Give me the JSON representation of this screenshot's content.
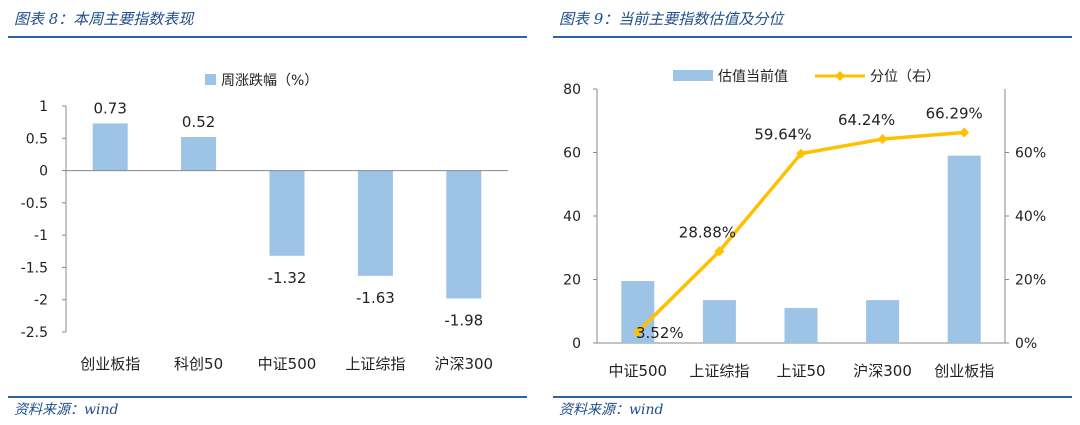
{
  "left": {
    "title": "图表 8：本周主要指数表现",
    "source": "资料来源：wind",
    "colors": {
      "bar": "#9dc3e6",
      "axis": "#888888"
    },
    "chart_data": {
      "type": "bar",
      "categories": [
        "创业板指",
        "科创50",
        "中证500",
        "上证综指",
        "沪深300"
      ],
      "series": [
        {
          "name": "周涨跌幅（%）",
          "values": [
            0.73,
            0.52,
            -1.32,
            -1.63,
            -1.98
          ]
        }
      ],
      "data_labels": [
        "0.73",
        "0.52",
        "-1.32",
        "-1.63",
        "-1.98"
      ],
      "ylim": [
        -2.5,
        1
      ],
      "yticks": [
        1,
        0.5,
        0,
        -0.5,
        -1,
        -1.5,
        -2,
        -2.5
      ],
      "ytick_labels": [
        "1",
        "0.5",
        "0",
        "-0.5",
        "-1",
        "-1.5",
        "-2",
        "-2.5"
      ],
      "legend": "top",
      "grid": false
    }
  },
  "right": {
    "title": "图表 9：当前主要指数估值及分位",
    "source": "资料来源：wind",
    "colors": {
      "bar": "#9dc3e6",
      "line": "#ffc000",
      "axis": "#888888"
    },
    "chart_data": {
      "type": "bar+line",
      "categories": [
        "中证500",
        "上证综指",
        "上证50",
        "沪深300",
        "创业板指"
      ],
      "series": [
        {
          "name": "估值当前值",
          "type": "bar",
          "axis": "left",
          "values": [
            19.5,
            13.5,
            11,
            13.5,
            59
          ]
        },
        {
          "name": "分位（右）",
          "type": "line",
          "axis": "right",
          "values": [
            3.52,
            28.88,
            59.64,
            64.24,
            66.29
          ],
          "data_labels": [
            "3.52%",
            "28.88%",
            "59.64%",
            "64.24%",
            "66.29%"
          ]
        }
      ],
      "ylim_left": [
        0,
        80
      ],
      "yticks_left": [
        "0",
        "20",
        "40",
        "60",
        "80"
      ],
      "ylim_right": [
        0,
        80
      ],
      "yticks_right": [
        "0%",
        "20%",
        "40%",
        "60%"
      ],
      "legend": "top",
      "grid": false
    }
  }
}
